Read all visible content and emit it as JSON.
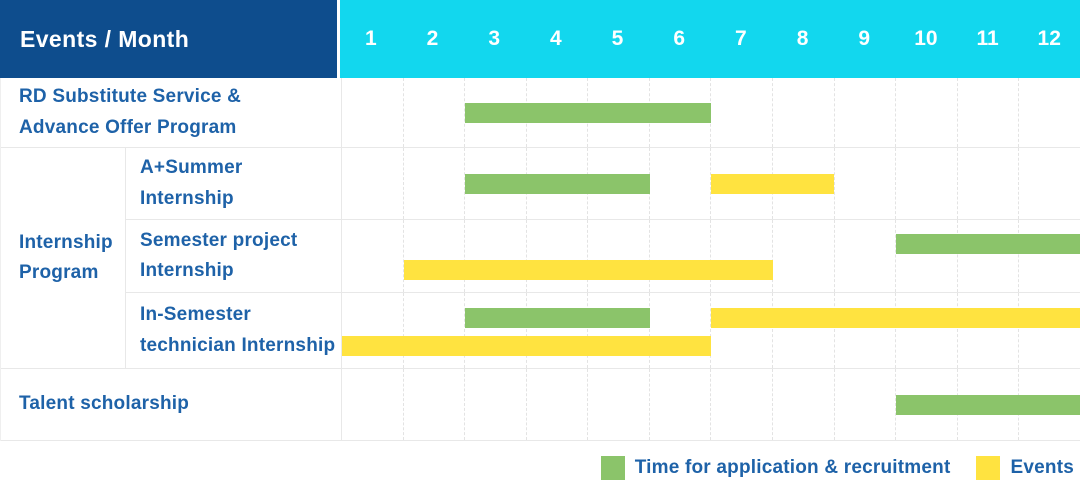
{
  "header": {
    "title": "Events / Month",
    "months": [
      "1",
      "2",
      "3",
      "4",
      "5",
      "6",
      "7",
      "8",
      "9",
      "10",
      "11",
      "12"
    ]
  },
  "group": {
    "label": "Internship\nProgram"
  },
  "rows": [
    {
      "label": "RD Substitute Service &\nAdvance Offer Program",
      "in_group": false,
      "bars": [
        {
          "type": "application",
          "start": 3,
          "end": 6,
          "line": 0
        }
      ]
    },
    {
      "label": "A+Summer\nInternship",
      "in_group": true,
      "bars": [
        {
          "type": "application",
          "start": 3,
          "end": 5,
          "line": 0
        },
        {
          "type": "event",
          "start": 7,
          "end": 8,
          "line": 0
        }
      ]
    },
    {
      "label": "Semester project\nInternship",
      "in_group": true,
      "bars": [
        {
          "type": "application",
          "start": 10,
          "end": 12,
          "line": 0
        },
        {
          "type": "event",
          "start": 2,
          "end": 7,
          "line": 1
        }
      ]
    },
    {
      "label": "In-Semester\ntechnician Internship",
      "in_group": true,
      "bars": [
        {
          "type": "application",
          "start": 3,
          "end": 5,
          "line": 0
        },
        {
          "type": "event",
          "start": 7,
          "end": 12,
          "line": 0
        },
        {
          "type": "event",
          "start": 1,
          "end": 6,
          "line": 1
        }
      ]
    },
    {
      "label": "Talent scholarship",
      "in_group": false,
      "bars": [
        {
          "type": "application",
          "start": 10,
          "end": 12,
          "line": 0
        }
      ]
    }
  ],
  "legend": [
    {
      "type": "application",
      "label": "Time for application & recruitment"
    },
    {
      "type": "event",
      "label": "Events"
    }
  ],
  "colors": {
    "header_bg": "#0E4D8D",
    "month_header_bg": "#12D7EE",
    "application": "#8BC46A",
    "event": "#FFE340",
    "label_text": "#1E62A8"
  },
  "chart_data": {
    "type": "table",
    "title": "Events / Month",
    "x_axis": {
      "label": "Month",
      "ticks": [
        1,
        2,
        3,
        4,
        5,
        6,
        7,
        8,
        9,
        10,
        11,
        12
      ],
      "range": [
        1,
        12
      ]
    },
    "grid": true,
    "legend_position": "bottom-right",
    "legend": [
      "Time for application & recruitment",
      "Events"
    ],
    "rows": [
      {
        "event": "RD Substitute Service & Advance Offer Program",
        "group": null,
        "application_recruitment_month_spans": [
          [
            3,
            6
          ]
        ],
        "event_month_spans": []
      },
      {
        "event": "A+Summer Internship",
        "group": "Internship Program",
        "application_recruitment_month_spans": [
          [
            3,
            5
          ]
        ],
        "event_month_spans": [
          [
            7,
            8
          ]
        ]
      },
      {
        "event": "Semester project Internship",
        "group": "Internship Program",
        "application_recruitment_month_spans": [
          [
            10,
            12
          ]
        ],
        "event_month_spans": [
          [
            2,
            7
          ]
        ]
      },
      {
        "event": "In-Semester technician Internship",
        "group": "Internship Program",
        "application_recruitment_month_spans": [
          [
            3,
            5
          ]
        ],
        "event_month_spans": [
          [
            7,
            12
          ],
          [
            1,
            6
          ]
        ]
      },
      {
        "event": "Talent scholarship",
        "group": null,
        "application_recruitment_month_spans": [
          [
            10,
            12
          ]
        ],
        "event_month_spans": []
      }
    ]
  }
}
